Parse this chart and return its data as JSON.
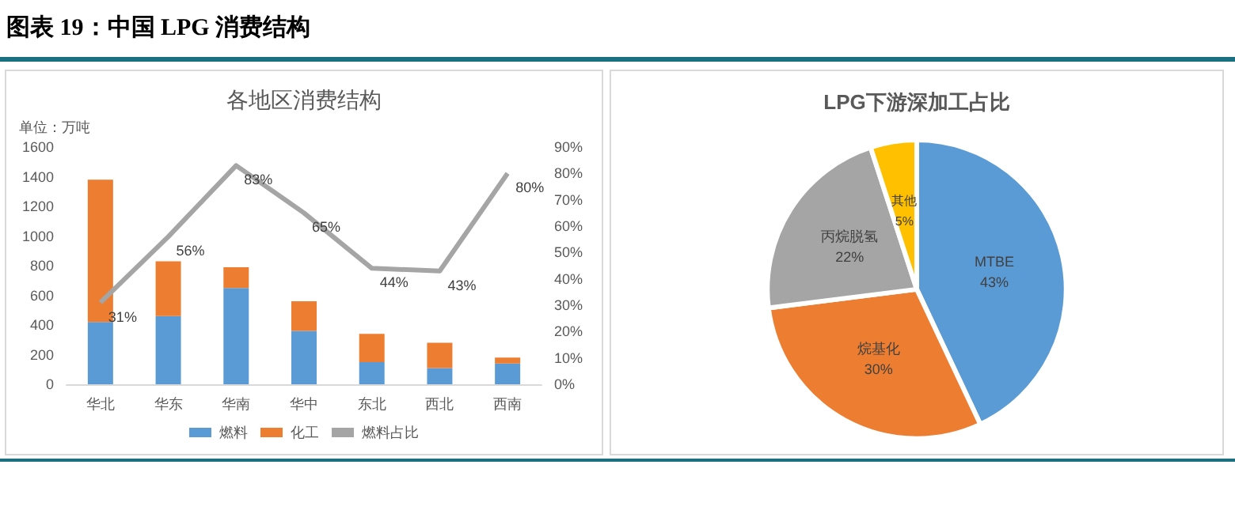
{
  "chart_data": [
    {
      "type": "bar",
      "title": "各地区消费结构",
      "ylabel": "单位：万吨",
      "annotations": [
        "图表 19：中国 LPG 消费结构"
      ],
      "categories": [
        "华北",
        "华东",
        "华南",
        "华中",
        "东北",
        "西北",
        "西南"
      ],
      "stacked": true,
      "legend": "bottom",
      "marker": "none",
      "ylim": [
        0,
        1600
      ],
      "yticks": [
        0,
        200,
        400,
        600,
        800,
        1000,
        1200,
        1400,
        1600
      ],
      "y2lim": [
        0,
        90
      ],
      "y2ticks": [
        {
          "value": 0,
          "label": "0%"
        },
        {
          "value": 10,
          "label": "10%"
        },
        {
          "value": 20,
          "label": "20%"
        },
        {
          "value": 30,
          "label": "30%"
        },
        {
          "value": 40,
          "label": "40%"
        },
        {
          "value": 50,
          "label": "50%"
        },
        {
          "value": 60,
          "label": "60%"
        },
        {
          "value": 70,
          "label": "70%"
        },
        {
          "value": 80,
          "label": "80%"
        },
        {
          "value": 90,
          "label": "90%"
        }
      ],
      "series": [
        {
          "name": "燃料",
          "color": "#5b9bd5",
          "values": [
            420,
            460,
            650,
            360,
            150,
            110,
            140
          ]
        },
        {
          "name": "化工",
          "color": "#ed7d31",
          "values": [
            960,
            370,
            140,
            200,
            190,
            170,
            40
          ]
        },
        {
          "name": "燃料占比",
          "type": "line",
          "axis": "y2",
          "color": "#a5a5a5",
          "values": [
            31,
            56,
            83,
            65,
            44,
            43,
            80
          ],
          "value_labels": [
            "31%",
            "56%",
            "83%",
            "65%",
            "44%",
            "43%",
            "80%"
          ]
        }
      ]
    },
    {
      "type": "pie",
      "title": "LPG下游深加工占比",
      "categories": [
        "MTBE",
        "烷基化",
        "丙烷脱氢",
        "其他"
      ],
      "values": [
        43,
        30,
        22,
        5
      ],
      "colors": [
        "#5b9bd5",
        "#ed7d31",
        "#a5a5a5",
        "#ffc000"
      ],
      "value_labels": [
        "43%",
        "30%",
        "22%",
        "5%"
      ]
    }
  ]
}
